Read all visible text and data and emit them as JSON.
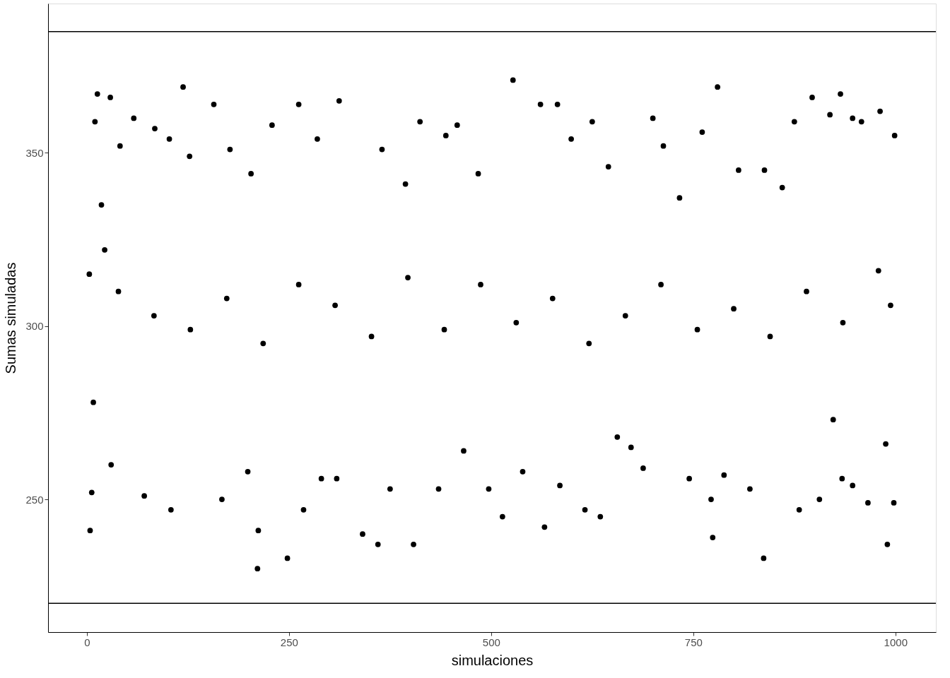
{
  "chart_data": {
    "type": "scatter",
    "xlabel": "simulaciones",
    "ylabel": "Sumas simuladas",
    "xlim": [
      -48,
      1050
    ],
    "ylim": [
      211.7,
      393.1
    ],
    "xticks": [
      0,
      250,
      500,
      750,
      1000
    ],
    "yticks": [
      250,
      300,
      350
    ],
    "grid": false,
    "marker": "circle",
    "ref_lines": [
      {
        "axis": "y",
        "value": 385,
        "color": "#000000"
      },
      {
        "axis": "y",
        "value": 220,
        "color": "#000000"
      }
    ],
    "series": [
      {
        "color": "#000000",
        "x": [
          3,
          4,
          6,
          8,
          10,
          13,
          18,
          22,
          29,
          30,
          41,
          58,
          71,
          84,
          102,
          104,
          119,
          127,
          157,
          167,
          177,
          199,
          203,
          211,
          212,
          229,
          248,
          262,
          268,
          285,
          290,
          312,
          309,
          341,
          360,
          365,
          375,
          394,
          404,
          412,
          435,
          444,
          458,
          466,
          484,
          497,
          514,
          527,
          539,
          561,
          566,
          582,
          585,
          599,
          616,
          625,
          635,
          645,
          656,
          673,
          688,
          700,
          713,
          733,
          745,
          761,
          772,
          774,
          780,
          788,
          806,
          820,
          838,
          837,
          860,
          875,
          881,
          897,
          906,
          919,
          923,
          932,
          934,
          947,
          947,
          958,
          966,
          981,
          988,
          990,
          998,
          999,
          994,
          39,
          83,
          128,
          173,
          218,
          262,
          307,
          352,
          397,
          442,
          487,
          531,
          576,
          621,
          666,
          710,
          755,
          800,
          845,
          890,
          935,
          979
        ],
        "values": [
          315,
          241,
          252,
          278,
          359,
          367,
          335,
          322,
          366,
          260,
          352,
          360,
          251,
          357,
          354,
          247,
          369,
          349,
          364,
          250,
          351,
          258,
          344,
          230,
          241,
          358,
          233,
          364,
          247,
          354,
          256,
          365,
          256,
          240,
          237,
          351,
          253,
          341,
          237,
          359,
          253,
          355,
          358,
          264,
          344,
          253,
          245,
          371,
          258,
          364,
          242,
          364,
          254,
          354,
          247,
          359,
          245,
          346,
          268,
          265,
          259,
          360,
          352,
          337,
          256,
          356,
          250,
          239,
          369,
          257,
          345,
          253,
          345,
          233,
          340,
          359,
          247,
          366,
          250,
          361,
          273,
          367,
          256,
          360,
          254,
          359,
          249,
          362,
          266,
          237,
          249,
          355,
          306,
          310,
          303,
          299,
          308,
          295,
          312,
          306,
          297,
          314,
          299,
          312,
          301,
          308,
          295,
          303,
          312,
          299,
          305,
          297,
          310,
          301,
          316
        ]
      }
    ]
  }
}
